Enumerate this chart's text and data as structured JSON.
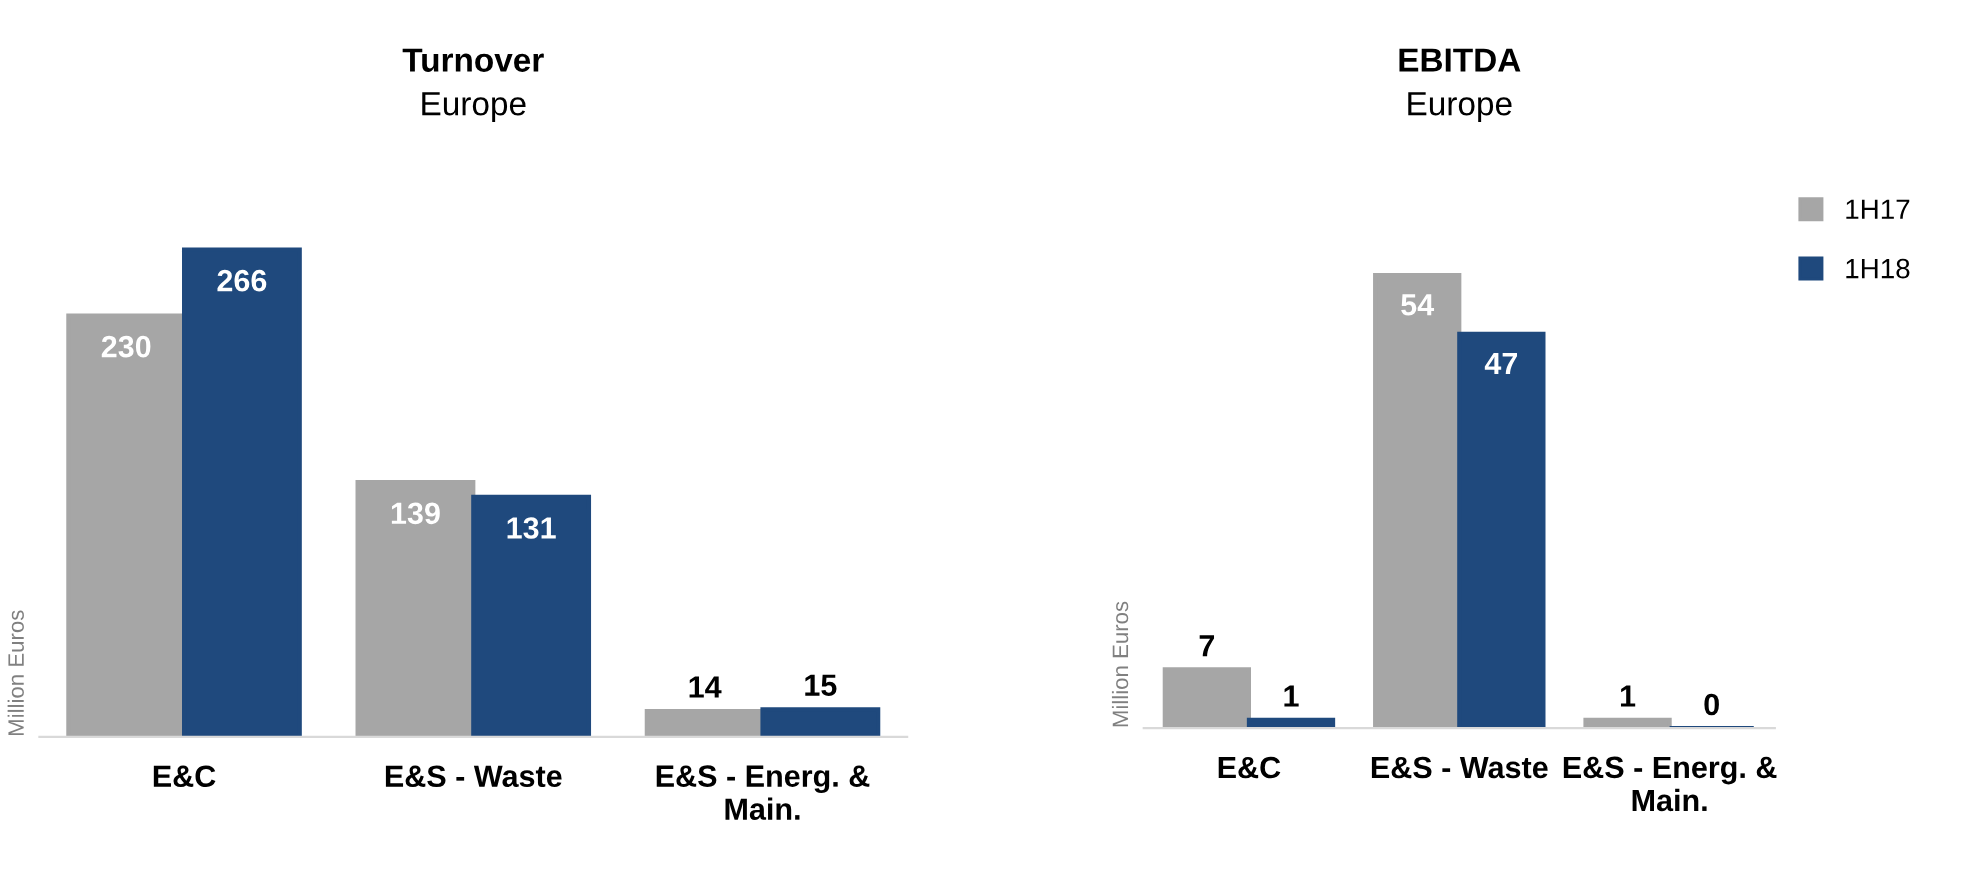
{
  "chart_data": [
    {
      "type": "bar",
      "title": "Turnover",
      "subtitle": "Europe",
      "ylabel": "Million Euros",
      "categories": [
        "E&C",
        "E&S - Waste",
        "E&S - Energ. &\nMain."
      ],
      "series": [
        {
          "color": "#a6a6a6",
          "values": [
            230,
            139,
            14
          ]
        },
        {
          "color": "#1f497d",
          "values": [
            266,
            131,
            15
          ]
        }
      ],
      "data_labels": true,
      "grid": false,
      "legend": false
    },
    {
      "type": "bar",
      "title": "EBITDA",
      "subtitle": "Europe",
      "ylabel": "Million Euros",
      "categories": [
        "E&C",
        "E&S - Waste",
        "E&S - Energ. &\nMain."
      ],
      "series": [
        {
          "name": "1H17",
          "color": "#a6a6a6",
          "values": [
            7,
            54,
            1
          ]
        },
        {
          "name": "1H18",
          "color": "#1f497d",
          "values": [
            1,
            47,
            0
          ]
        }
      ],
      "data_labels": true,
      "grid": false,
      "legend": "top right"
    }
  ]
}
